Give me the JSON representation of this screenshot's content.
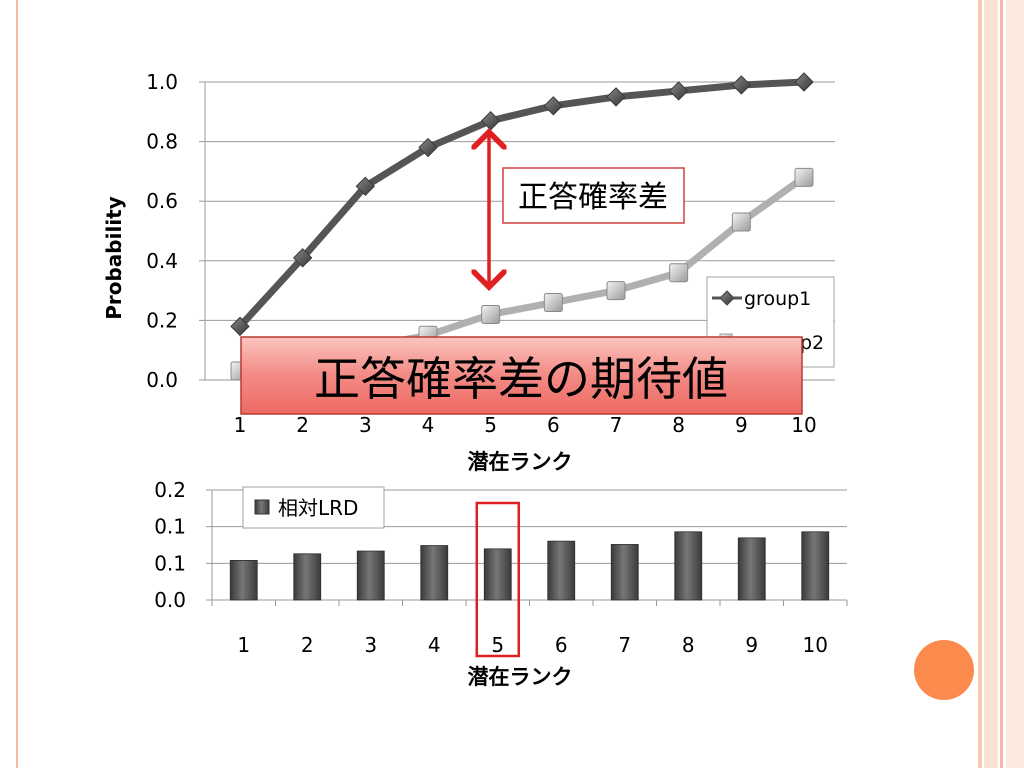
{
  "chart_data": [
    {
      "type": "line",
      "title": "",
      "xlabel": "潜在ランク",
      "ylabel": "Probability",
      "categories": [
        "1",
        "2",
        "3",
        "4",
        "5",
        "6",
        "7",
        "8",
        "9",
        "10"
      ],
      "ylim": [
        0,
        1
      ],
      "yticks": [
        "0.0",
        "0.2",
        "0.4",
        "0.6",
        "0.8",
        "1.0"
      ],
      "grid": true,
      "legend_position": "bottom-right",
      "series": [
        {
          "name": "group1",
          "marker": "diamond",
          "color": "#555555",
          "values": [
            0.18,
            0.41,
            0.65,
            0.78,
            0.87,
            0.92,
            0.95,
            0.97,
            0.99,
            1.0
          ]
        },
        {
          "name": "group2",
          "marker": "square",
          "color": "#b0b0b0",
          "values": [
            0.03,
            0.07,
            0.11,
            0.15,
            0.22,
            0.26,
            0.3,
            0.36,
            0.53,
            0.68
          ]
        }
      ],
      "annotations": {
        "arrow_label": "正答確率差",
        "banner": "正答確率差の期待値"
      }
    },
    {
      "type": "bar",
      "title": "",
      "xlabel": "潜在ランク",
      "ylabel": "",
      "categories": [
        "1",
        "2",
        "3",
        "4",
        "5",
        "6",
        "7",
        "8",
        "9",
        "10"
      ],
      "ylim": [
        0,
        0.2
      ],
      "yticks": [
        "0.0",
        "0.1",
        "0.1",
        "0.2"
      ],
      "grid": true,
      "legend_position": "top-left",
      "highlight_category": "5",
      "series": [
        {
          "name": "相対LRD",
          "color": "#555555",
          "values": [
            0.072,
            0.084,
            0.089,
            0.099,
            0.093,
            0.107,
            0.101,
            0.124,
            0.113,
            0.124
          ]
        }
      ]
    }
  ],
  "legend_visible_labels": [
    "group1",
    "p2"
  ],
  "colors": {
    "accent_red": "#e02020",
    "banner_fill": "#f38a85",
    "banner_border": "#c0392b",
    "decor_orange": "#fb8a4c"
  }
}
